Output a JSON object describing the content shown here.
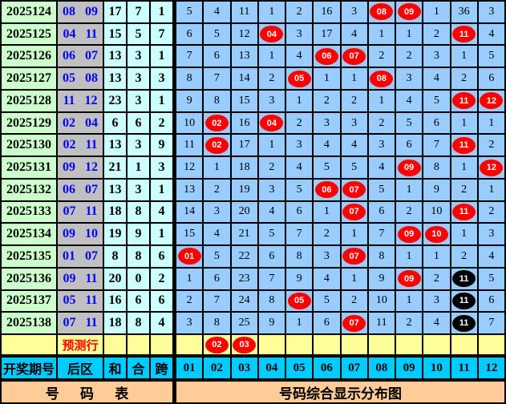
{
  "chart_data": {
    "type": "table",
    "title": "号码综合显示分布图",
    "left_title": "号 码 表",
    "column_headers": {
      "period": "开奖期号",
      "back_zone": "后区",
      "sum": "和",
      "he": "合",
      "span": "跨"
    },
    "number_headers": [
      "01",
      "02",
      "03",
      "04",
      "05",
      "06",
      "07",
      "08",
      "09",
      "10",
      "11",
      "12"
    ],
    "prediction_row": {
      "label": "预测行",
      "marks": [
        {
          "number": "02",
          "type": "red"
        },
        {
          "number": "03",
          "type": "red"
        }
      ]
    },
    "rows": [
      {
        "period": "2025124",
        "back_zone": "08 09",
        "sum": "17",
        "he": "7",
        "span": "1",
        "cells": [
          "5",
          "4",
          "11",
          "1",
          "2",
          "16",
          "3",
          {
            "v": "08",
            "mark": "red"
          },
          {
            "v": "09",
            "mark": "red"
          },
          "1",
          "36",
          "3"
        ]
      },
      {
        "period": "2025125",
        "back_zone": "04 11",
        "sum": "15",
        "he": "5",
        "span": "7",
        "cells": [
          "6",
          "5",
          "12",
          {
            "v": "04",
            "mark": "red"
          },
          "3",
          "17",
          "4",
          "1",
          "1",
          "2",
          {
            "v": "11",
            "mark": "red"
          },
          "4"
        ]
      },
      {
        "period": "2025126",
        "back_zone": "06 07",
        "sum": "13",
        "he": "3",
        "span": "1",
        "cells": [
          "7",
          "6",
          "13",
          "1",
          "4",
          {
            "v": "06",
            "mark": "red"
          },
          {
            "v": "07",
            "mark": "red"
          },
          "2",
          "2",
          "3",
          "1",
          "5"
        ]
      },
      {
        "period": "2025127",
        "back_zone": "05 08",
        "sum": "13",
        "he": "3",
        "span": "3",
        "cells": [
          "8",
          "7",
          "14",
          "2",
          {
            "v": "05",
            "mark": "red"
          },
          "1",
          "1",
          {
            "v": "08",
            "mark": "red"
          },
          "3",
          "4",
          "2",
          "6"
        ]
      },
      {
        "period": "2025128",
        "back_zone": "11 12",
        "sum": "23",
        "he": "3",
        "span": "1",
        "cells": [
          "9",
          "8",
          "15",
          "3",
          "1",
          "2",
          "2",
          "1",
          "4",
          "5",
          {
            "v": "11",
            "mark": "red"
          },
          {
            "v": "12",
            "mark": "red"
          }
        ]
      },
      {
        "period": "2025129",
        "back_zone": "02 04",
        "sum": "6",
        "he": "6",
        "span": "2",
        "cells": [
          "10",
          {
            "v": "02",
            "mark": "red"
          },
          "16",
          {
            "v": "04",
            "mark": "red"
          },
          "2",
          "3",
          "3",
          "2",
          "5",
          "6",
          "1",
          "1"
        ]
      },
      {
        "period": "2025130",
        "back_zone": "02 11",
        "sum": "13",
        "he": "3",
        "span": "9",
        "cells": [
          "11",
          {
            "v": "02",
            "mark": "red"
          },
          "17",
          "1",
          "3",
          "4",
          "4",
          "3",
          "6",
          "7",
          {
            "v": "11",
            "mark": "red"
          },
          "2"
        ]
      },
      {
        "period": "2025131",
        "back_zone": "09 12",
        "sum": "21",
        "he": "1",
        "span": "3",
        "cells": [
          "12",
          "1",
          "18",
          "2",
          "4",
          "5",
          "5",
          "4",
          {
            "v": "09",
            "mark": "red"
          },
          "8",
          "1",
          {
            "v": "12",
            "mark": "red"
          }
        ]
      },
      {
        "period": "2025132",
        "back_zone": "06 07",
        "sum": "13",
        "he": "3",
        "span": "1",
        "cells": [
          "13",
          "2",
          "19",
          "3",
          "5",
          {
            "v": "06",
            "mark": "red"
          },
          {
            "v": "07",
            "mark": "red"
          },
          "5",
          "1",
          "9",
          "2",
          "1"
        ]
      },
      {
        "period": "2025133",
        "back_zone": "07 11",
        "sum": "18",
        "he": "8",
        "span": "4",
        "cells": [
          "14",
          "3",
          "20",
          "4",
          "6",
          "1",
          {
            "v": "07",
            "mark": "red"
          },
          "6",
          "2",
          "10",
          {
            "v": "11",
            "mark": "red"
          },
          "2"
        ]
      },
      {
        "period": "2025134",
        "back_zone": "09 10",
        "sum": "19",
        "he": "9",
        "span": "1",
        "cells": [
          "15",
          "4",
          "21",
          "5",
          "7",
          "2",
          "1",
          "7",
          {
            "v": "09",
            "mark": "red"
          },
          {
            "v": "10",
            "mark": "red"
          },
          "1",
          "3"
        ]
      },
      {
        "period": "2025135",
        "back_zone": "01 07",
        "sum": "8",
        "he": "8",
        "span": "6",
        "cells": [
          {
            "v": "01",
            "mark": "red"
          },
          "5",
          "22",
          "6",
          "8",
          "3",
          {
            "v": "07",
            "mark": "red"
          },
          "8",
          "1",
          "1",
          "2",
          "4"
        ]
      },
      {
        "period": "2025136",
        "back_zone": "09 11",
        "sum": "20",
        "he": "0",
        "span": "2",
        "cells": [
          "1",
          "6",
          "23",
          "7",
          "9",
          "4",
          "1",
          "9",
          {
            "v": "09",
            "mark": "red"
          },
          "2",
          {
            "v": "11",
            "mark": "black"
          },
          "5"
        ]
      },
      {
        "period": "2025137",
        "back_zone": "05 11",
        "sum": "16",
        "he": "6",
        "span": "6",
        "cells": [
          "2",
          "7",
          "24",
          "8",
          {
            "v": "05",
            "mark": "red"
          },
          "5",
          "2",
          "10",
          "1",
          "3",
          {
            "v": "11",
            "mark": "black"
          },
          "6"
        ]
      },
      {
        "period": "2025138",
        "back_zone": "07 11",
        "sum": "18",
        "he": "8",
        "span": "4",
        "cells": [
          "3",
          "8",
          "25",
          "9",
          "1",
          "6",
          {
            "v": "07",
            "mark": "red"
          },
          "11",
          "2",
          "4",
          {
            "v": "11",
            "mark": "black"
          },
          "7"
        ]
      }
    ],
    "colors": {
      "grid_blue": "#99ccff",
      "period_green": "#ccffcc",
      "back_zone_gray": "#c0c0c0",
      "value_cyan": "#ccffff",
      "prediction_yellow": "#ffff99",
      "header_cyan": "#00ccff",
      "footer_orange": "#ffcc99",
      "red_ball": "#ff0000",
      "black_ball": "#000000",
      "back_zone_text": "#0000ff",
      "prediction_text": "#ff0000"
    }
  }
}
